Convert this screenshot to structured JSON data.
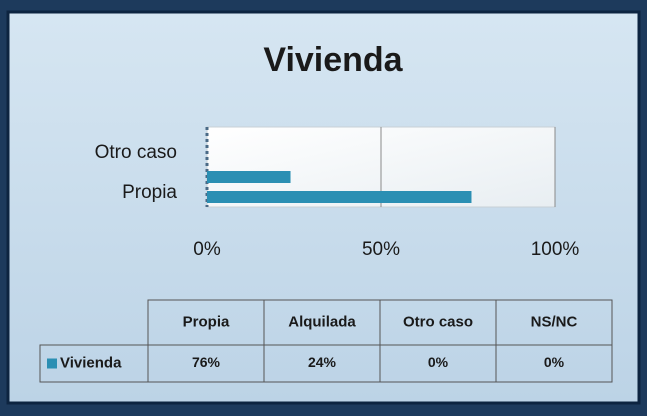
{
  "chart_data": {
    "type": "bar",
    "orientation": "horizontal",
    "title": "Vivienda",
    "categories": [
      "Propia",
      "Alquilada",
      "Otro caso",
      "NS/NC"
    ],
    "series": [
      {
        "name": "Vivienda",
        "color": "#2b8fb3",
        "values": [
          76,
          24,
          0,
          0
        ],
        "value_labels": [
          "76%",
          "24%",
          "0%",
          "0%"
        ]
      }
    ],
    "xlim": [
      0,
      100
    ],
    "xticks": [
      {
        "value": 0,
        "label": "0%"
      },
      {
        "value": 50,
        "label": "50%"
      },
      {
        "value": 100,
        "label": "100%"
      }
    ],
    "grid": true
  }
}
